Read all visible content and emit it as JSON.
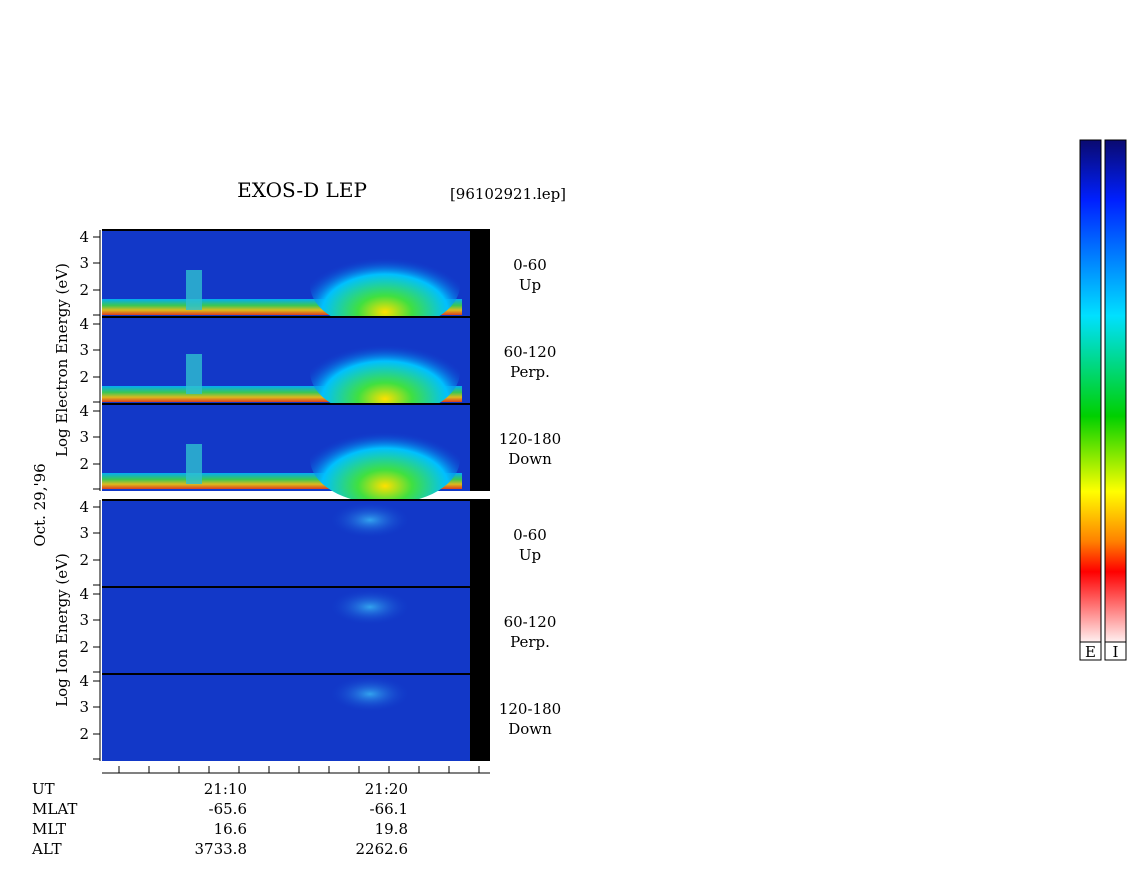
{
  "title": "EXOS-D LEP",
  "file": "[96102921.lep]",
  "date": "Oct. 29,'96",
  "electron_axis_label": "Log  Electron  Energy (eV)",
  "ion_axis_label": "Log  Ion  Energy (eV)",
  "panels": [
    {
      "yticks": [
        "4",
        "3",
        "2"
      ],
      "angle": "0-60",
      "direction": "Up"
    },
    {
      "yticks": [
        "4",
        "3",
        "2"
      ],
      "angle": "60-120",
      "direction": "Perp."
    },
    {
      "yticks": [
        "4",
        "3",
        "2"
      ],
      "angle": "120-180",
      "direction": "Down"
    },
    {
      "yticks": [
        "4",
        "3",
        "2"
      ],
      "angle": "0-60",
      "direction": "Up"
    },
    {
      "yticks": [
        "4",
        "3",
        "2"
      ],
      "angle": "60-120",
      "direction": "Perp."
    },
    {
      "yticks": [
        "4",
        "3",
        "2"
      ],
      "angle": "120-180",
      "direction": "Down"
    }
  ],
  "orbit": {
    "rows": [
      {
        "label": "UT",
        "values": [
          "21:10",
          "21:20"
        ]
      },
      {
        "label": "MLAT",
        "values": [
          "-65.6",
          "-66.1"
        ]
      },
      {
        "label": "MLT",
        "values": [
          "16.6",
          "19.8"
        ]
      },
      {
        "label": "ALT",
        "values": [
          "3733.8",
          "2262.6"
        ]
      }
    ]
  },
  "colorbars": [
    "E",
    "I"
  ]
}
